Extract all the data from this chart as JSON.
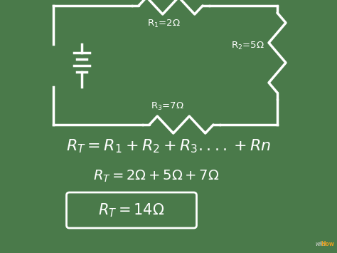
{
  "background_color": "#4a7a4a",
  "white_color": "#ffffff",
  "formula1": "R_T = R_1+R_2+R_3....+Rn",
  "formula2": "R_T =  2Ω+ 5Ω+ 7Ω",
  "formula3": "R_T = 14Ω",
  "r1_label": "R$_1$=2Ω",
  "r2_label": "R$_2$=5Ω",
  "r3_label": "R$_3$=7Ω",
  "figsize": [
    4.74,
    3.55
  ],
  "dpi": 100,
  "xlim": [
    0,
    474
  ],
  "ylim": [
    0,
    355
  ]
}
